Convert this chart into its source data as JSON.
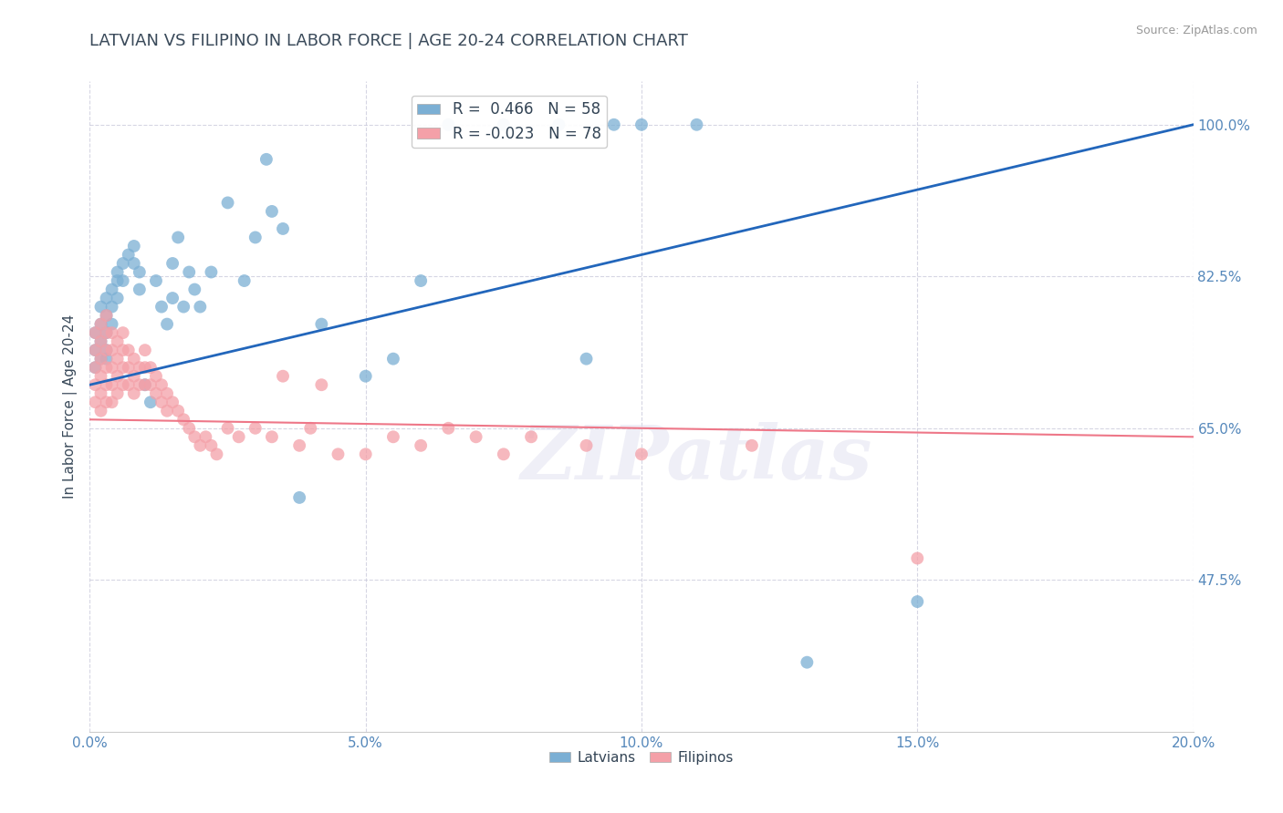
{
  "title": "LATVIAN VS FILIPINO IN LABOR FORCE | AGE 20-24 CORRELATION CHART",
  "source": "Source: ZipAtlas.com",
  "ylabel": "In Labor Force | Age 20-24",
  "xlim": [
    0.0,
    0.2
  ],
  "ylim": [
    0.3,
    1.05
  ],
  "xticks": [
    0.0,
    0.05,
    0.1,
    0.15,
    0.2
  ],
  "xtick_labels": [
    "0.0%",
    "5.0%",
    "10.0%",
    "15.0%",
    "20.0%"
  ],
  "yticks": [
    0.475,
    0.65,
    0.825,
    1.0
  ],
  "ytick_labels": [
    "47.5%",
    "65.0%",
    "82.5%",
    "100.0%"
  ],
  "legend_latvian": "Latvians",
  "legend_filipino": "Filipinos",
  "r_latvian": 0.466,
  "n_latvian": 58,
  "r_filipino": -0.023,
  "n_filipino": 78,
  "latvian_color": "#7BAFD4",
  "filipino_color": "#F4A0A8",
  "latvian_line_color": "#2266BB",
  "filipino_line_color": "#EE7788",
  "background_color": "#FFFFFF",
  "title_color": "#3A4A5A",
  "axis_label_color": "#3A4A5A",
  "tick_color": "#5588BB",
  "grid_color": "#CCCCDD",
  "watermark": "ZIPatlas",
  "latvian_x": [
    0.001,
    0.001,
    0.001,
    0.002,
    0.002,
    0.002,
    0.002,
    0.003,
    0.003,
    0.003,
    0.003,
    0.003,
    0.004,
    0.004,
    0.004,
    0.005,
    0.005,
    0.005,
    0.006,
    0.006,
    0.007,
    0.008,
    0.008,
    0.009,
    0.009,
    0.01,
    0.011,
    0.012,
    0.013,
    0.014,
    0.015,
    0.015,
    0.016,
    0.017,
    0.018,
    0.019,
    0.02,
    0.022,
    0.025,
    0.028,
    0.03,
    0.032,
    0.033,
    0.035,
    0.038,
    0.042,
    0.05,
    0.055,
    0.06,
    0.065,
    0.075,
    0.085,
    0.09,
    0.095,
    0.1,
    0.11,
    0.13,
    0.15
  ],
  "latvian_y": [
    0.76,
    0.74,
    0.72,
    0.79,
    0.77,
    0.75,
    0.73,
    0.8,
    0.78,
    0.76,
    0.74,
    0.73,
    0.81,
    0.79,
    0.77,
    0.83,
    0.82,
    0.8,
    0.84,
    0.82,
    0.85,
    0.86,
    0.84,
    0.83,
    0.81,
    0.7,
    0.68,
    0.82,
    0.79,
    0.77,
    0.84,
    0.8,
    0.87,
    0.79,
    0.83,
    0.81,
    0.79,
    0.83,
    0.91,
    0.82,
    0.87,
    0.96,
    0.9,
    0.88,
    0.57,
    0.77,
    0.71,
    0.73,
    0.82,
    1.0,
    1.0,
    1.0,
    0.73,
    1.0,
    1.0,
    1.0,
    0.38,
    0.45
  ],
  "filipino_x": [
    0.001,
    0.001,
    0.001,
    0.001,
    0.001,
    0.002,
    0.002,
    0.002,
    0.002,
    0.002,
    0.002,
    0.003,
    0.003,
    0.003,
    0.003,
    0.003,
    0.003,
    0.004,
    0.004,
    0.004,
    0.004,
    0.004,
    0.005,
    0.005,
    0.005,
    0.005,
    0.006,
    0.006,
    0.006,
    0.006,
    0.007,
    0.007,
    0.007,
    0.008,
    0.008,
    0.008,
    0.009,
    0.009,
    0.01,
    0.01,
    0.01,
    0.011,
    0.011,
    0.012,
    0.012,
    0.013,
    0.013,
    0.014,
    0.014,
    0.015,
    0.016,
    0.017,
    0.018,
    0.019,
    0.02,
    0.021,
    0.022,
    0.023,
    0.025,
    0.027,
    0.03,
    0.033,
    0.035,
    0.038,
    0.04,
    0.042,
    0.045,
    0.05,
    0.055,
    0.06,
    0.065,
    0.07,
    0.075,
    0.08,
    0.09,
    0.1,
    0.12,
    0.15
  ],
  "filipino_y": [
    0.76,
    0.74,
    0.72,
    0.7,
    0.68,
    0.77,
    0.75,
    0.73,
    0.71,
    0.69,
    0.67,
    0.78,
    0.76,
    0.74,
    0.72,
    0.7,
    0.68,
    0.76,
    0.74,
    0.72,
    0.7,
    0.68,
    0.75,
    0.73,
    0.71,
    0.69,
    0.76,
    0.74,
    0.72,
    0.7,
    0.74,
    0.72,
    0.7,
    0.73,
    0.71,
    0.69,
    0.72,
    0.7,
    0.74,
    0.72,
    0.7,
    0.72,
    0.7,
    0.71,
    0.69,
    0.7,
    0.68,
    0.69,
    0.67,
    0.68,
    0.67,
    0.66,
    0.65,
    0.64,
    0.63,
    0.64,
    0.63,
    0.62,
    0.65,
    0.64,
    0.65,
    0.64,
    0.71,
    0.63,
    0.65,
    0.7,
    0.62,
    0.62,
    0.64,
    0.63,
    0.65,
    0.64,
    0.62,
    0.64,
    0.63,
    0.62,
    0.63,
    0.5
  ]
}
